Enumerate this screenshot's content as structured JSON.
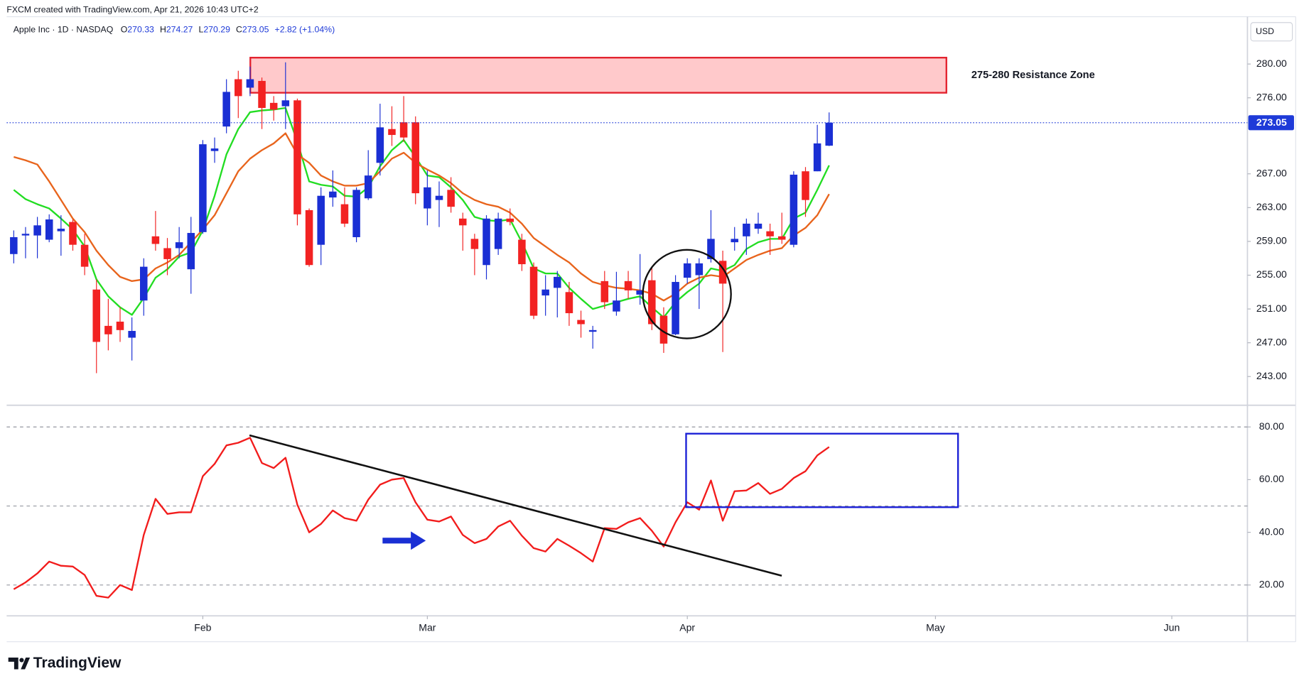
{
  "header": "FXCM created with TradingView.com, Apr 21, 2026 10:43 UTC+2",
  "logo": "TradingView",
  "chart_data": [
    {
      "type": "candlestick",
      "symbol": "Apple Inc · 1D · NASDAQ",
      "ohlc_prefixes": [
        "O",
        "H",
        "L",
        "C"
      ],
      "change": "+2.82 (+1.04%)",
      "currency": "USD",
      "annotation": "275-280 Resistance Zone",
      "up_color": "#1a2fd4",
      "down_color": "#f22222",
      "x": [
        0,
        1,
        2,
        3,
        4,
        5,
        6,
        7,
        8,
        9,
        10,
        11,
        12,
        13,
        14,
        15,
        16,
        17,
        18,
        19,
        20,
        21,
        22,
        23,
        24,
        25,
        26,
        27,
        28,
        29,
        30,
        31,
        32,
        33,
        34,
        35,
        36,
        37,
        38,
        39,
        40,
        41,
        42,
        43,
        44,
        45,
        46,
        47,
        48,
        49,
        50,
        51,
        52,
        53,
        54,
        55,
        56,
        57,
        58,
        59,
        60,
        61,
        62,
        63,
        64,
        65,
        66,
        67,
        68,
        69
      ],
      "open": [
        257.5,
        259.7,
        259.7,
        259.2,
        260.2,
        261.3,
        258.6,
        253.3,
        249.0,
        249.5,
        247.6,
        252.0,
        259.6,
        258.2,
        258.2,
        255.7,
        260.1,
        269.7,
        272.6,
        278.2,
        277.2,
        278.0,
        275.4,
        275.0,
        275.7,
        262.7,
        258.6,
        264.2,
        263.4,
        259.5,
        264.1,
        268.3,
        272.3,
        273.1,
        273.1,
        262.9,
        263.9,
        265.1,
        261.7,
        259.3,
        256.2,
        258.1,
        261.7,
        259.2,
        256.0,
        252.6,
        253.5,
        253.0,
        249.7,
        248.3,
        254.3,
        250.7,
        254.3,
        252.7,
        254.4,
        250.2,
        248.0,
        254.7,
        255.0,
        256.9,
        256.7,
        258.9,
        259.6,
        260.5,
        260.2,
        259.6,
        258.6,
        267.3,
        267.3,
        270.33
      ],
      "high": [
        260.3,
        260.7,
        261.9,
        262.2,
        262.1,
        261.6,
        259.9,
        254.5,
        252.2,
        251.2,
        250.0,
        257.0,
        262.6,
        259.4,
        260.7,
        261.9,
        271.0,
        271.3,
        278.2,
        279.2,
        279.7,
        278.4,
        276.2,
        280.2,
        275.9,
        262.9,
        265.4,
        267.4,
        265.4,
        265.4,
        269.8,
        275.3,
        275.0,
        276.2,
        273.8,
        267.4,
        266.1,
        266.6,
        262.4,
        259.9,
        262.1,
        262.4,
        262.9,
        259.9,
        256.5,
        255.0,
        255.5,
        254.2,
        250.8,
        249.0,
        255.5,
        255.4,
        255.5,
        257.5,
        256.0,
        251.2,
        255.0,
        257.0,
        257.0,
        262.7,
        257.9,
        260.7,
        261.7,
        262.4,
        261.1,
        262.4,
        267.3,
        267.8,
        272.8,
        274.27
      ],
      "low": [
        256.4,
        257.0,
        257.0,
        258.9,
        257.3,
        257.9,
        255.0,
        243.4,
        246.1,
        247.1,
        244.9,
        250.2,
        257.9,
        255.0,
        257.0,
        252.8,
        259.9,
        268.3,
        271.8,
        273.6,
        276.2,
        272.3,
        273.3,
        272.3,
        260.9,
        256.0,
        256.2,
        263.1,
        260.7,
        258.9,
        263.9,
        266.8,
        270.3,
        270.8,
        263.4,
        260.9,
        260.7,
        262.4,
        257.9,
        255.0,
        254.5,
        257.4,
        260.9,
        255.5,
        249.8,
        250.2,
        250.0,
        249.0,
        247.6,
        246.3,
        251.0,
        250.2,
        252.2,
        251.5,
        248.5,
        245.8,
        247.9,
        254.0,
        251.0,
        256.5,
        245.9,
        257.9,
        257.4,
        259.9,
        257.4,
        258.7,
        258.3,
        261.9,
        267.3,
        270.29
      ],
      "close": [
        259.5,
        259.9,
        260.9,
        261.6,
        260.5,
        258.6,
        256.0,
        247.1,
        248.0,
        248.5,
        248.4,
        256.0,
        258.7,
        256.9,
        258.9,
        260.0,
        270.5,
        270.0,
        276.7,
        276.2,
        278.2,
        274.8,
        274.6,
        275.7,
        262.2,
        256.2,
        264.4,
        264.9,
        261.1,
        265.1,
        266.8,
        272.5,
        271.6,
        271.3,
        264.7,
        265.4,
        264.4,
        263.1,
        260.9,
        258.1,
        261.7,
        261.7,
        261.3,
        256.3,
        250.2,
        253.3,
        254.8,
        250.5,
        249.2,
        248.5,
        251.8,
        252.0,
        253.2,
        253.2,
        249.2,
        246.9,
        254.2,
        256.4,
        256.4,
        259.3,
        254.0,
        259.3,
        261.1,
        261.1,
        259.6,
        259.2,
        266.9,
        263.9,
        270.6,
        273.05
      ],
      "series": [
        {
          "color": "#22dd22",
          "values": [
            265.1,
            264.0,
            263.4,
            262.9,
            261.7,
            260.4,
            258.4,
            254.5,
            252.5,
            251.2,
            250.3,
            252.3,
            254.7,
            255.7,
            257.2,
            257.7,
            260.3,
            264.4,
            269.3,
            272.3,
            274.3,
            274.5,
            274.6,
            274.8,
            270.8,
            266.1,
            265.7,
            265.5,
            264.4,
            264.3,
            265.4,
            267.9,
            269.8,
            271.0,
            269.0,
            266.8,
            266.6,
            265.4,
            263.9,
            261.9,
            261.5,
            261.4,
            261.6,
            258.9,
            255.8,
            255.2,
            255.2,
            253.5,
            252.2,
            251.0,
            251.4,
            251.8,
            252.2,
            252.5,
            251.2,
            250.0,
            251.8,
            253.0,
            254.0,
            255.8,
            255.5,
            256.2,
            258.1,
            258.9,
            259.3,
            259.3,
            261.7,
            262.4,
            265.1,
            268.0
          ]
        },
        {
          "color": "#e8641c",
          "values": [
            269.0,
            268.6,
            268.1,
            266.1,
            263.9,
            261.7,
            260.1,
            257.9,
            256.2,
            254.8,
            254.3,
            254.5,
            255.8,
            256.5,
            257.4,
            258.9,
            260.4,
            262.1,
            264.7,
            267.3,
            268.8,
            269.8,
            270.6,
            271.8,
            269.3,
            268.3,
            266.8,
            266.1,
            265.6,
            265.6,
            265.9,
            267.3,
            268.8,
            269.5,
            268.3,
            267.5,
            266.8,
            265.9,
            264.7,
            263.9,
            263.4,
            263.1,
            262.4,
            261.1,
            259.4,
            258.4,
            257.4,
            256.5,
            255.2,
            254.2,
            253.8,
            253.5,
            253.4,
            253.2,
            252.8,
            252.0,
            252.8,
            254.0,
            254.7,
            255.0,
            254.8,
            255.8,
            256.8,
            257.4,
            257.9,
            258.2,
            259.7,
            260.6,
            262.1,
            264.6
          ]
        }
      ],
      "xlim": [
        -0.6,
        104.4
      ],
      "xticks": [
        {
          "value": 16,
          "label": "Feb"
        },
        {
          "value": 35,
          "label": "Mar"
        },
        {
          "value": 57,
          "label": "Apr"
        },
        {
          "value": 78,
          "label": "May"
        },
        {
          "value": 98,
          "label": "Jun"
        }
      ],
      "ylim": [
        239.6,
        285.6
      ],
      "yticks": [
        {
          "value": 243,
          "label": "243.00"
        },
        {
          "value": 247,
          "label": "247.00"
        },
        {
          "value": 251,
          "label": "251.00"
        },
        {
          "value": 255,
          "label": "255.00"
        },
        {
          "value": 259,
          "label": "259.00"
        },
        {
          "value": 263,
          "label": "263.00"
        },
        {
          "value": 267,
          "label": "267.00"
        },
        {
          "value": 276,
          "label": "276.00"
        },
        {
          "value": 280,
          "label": "280.00"
        }
      ],
      "last_price_color": "#1e3ad8"
    },
    {
      "type": "line",
      "color": "#f21c1c",
      "values": [
        18.4,
        21.0,
        24.4,
        28.9,
        27.3,
        27.0,
        23.8,
        15.9,
        15.2,
        20.0,
        18.1,
        39.0,
        52.7,
        47.0,
        47.6,
        47.6,
        61.3,
        66.0,
        73.0,
        74.0,
        75.9,
        66.3,
        64.4,
        68.3,
        50.5,
        40.0,
        43.2,
        48.3,
        45.4,
        44.4,
        52.4,
        58.1,
        60.0,
        60.6,
        51.4,
        44.8,
        44.1,
        46.0,
        39.0,
        35.9,
        37.5,
        42.2,
        44.4,
        38.7,
        34.0,
        32.7,
        37.5,
        34.9,
        32.1,
        28.9,
        41.6,
        41.3,
        43.8,
        45.4,
        40.6,
        34.6,
        43.8,
        51.4,
        48.6,
        59.7,
        44.4,
        55.6,
        55.9,
        58.7,
        54.6,
        56.5,
        60.6,
        63.2,
        69.2,
        72.4
      ],
      "ylim": [
        8.3,
        87.6
      ],
      "yticks": [
        {
          "value": 20,
          "label": "20.00"
        },
        {
          "value": 40,
          "label": "40.00"
        },
        {
          "value": 60,
          "label": "60.00"
        },
        {
          "value": 80,
          "label": "80.00"
        }
      ],
      "levels": [
        20,
        50,
        80
      ]
    }
  ]
}
